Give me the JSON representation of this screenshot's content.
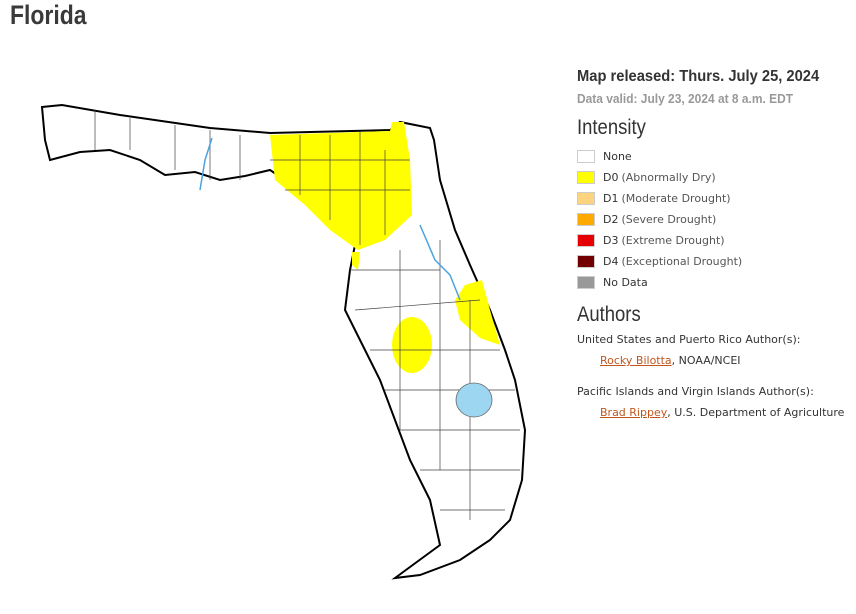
{
  "header": {
    "title": "Florida"
  },
  "info": {
    "released": "Map released: Thurs. July 25, 2024",
    "valid": "Data valid: July 23, 2024 at 8 a.m. EDT"
  },
  "legend": {
    "title": "Intensity",
    "items": [
      {
        "code": "None",
        "color": "#ffffff"
      },
      {
        "code": "D0",
        "label": "(Abnormally Dry)",
        "color": "#ffff00"
      },
      {
        "code": "D1",
        "label": "(Moderate Drought)",
        "color": "#fcd37f"
      },
      {
        "code": "D2",
        "label": "(Severe Drought)",
        "color": "#ffaa00"
      },
      {
        "code": "D3",
        "label": "(Extreme Drought)",
        "color": "#e60000"
      },
      {
        "code": "D4",
        "label": "(Exceptional Drought)",
        "color": "#730000"
      },
      {
        "code": "No Data",
        "color": "#999999"
      }
    ]
  },
  "authors": {
    "title": "Authors",
    "groups": [
      {
        "heading": "United States and Puerto Rico Author(s):",
        "name": "Rocky Bilotta",
        "affiliation": ", NOAA/NCEI"
      },
      {
        "heading": "Pacific Islands and Virgin Islands Author(s):",
        "name": "Brad Rippey",
        "affiliation": ", U.S. Department of Agriculture"
      }
    ]
  }
}
